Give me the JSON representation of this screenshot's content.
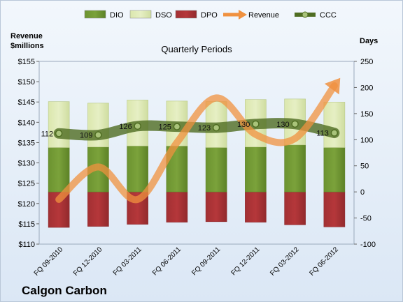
{
  "company": "Calgon Carbon",
  "chart_data": {
    "type": "bar",
    "title": "Quarterly Periods",
    "ylabel_left": [
      "Revenue",
      "$millions"
    ],
    "ylabel_right": "Days",
    "categories": [
      "FQ 09-2010",
      "FQ 12-2010",
      "FQ 03-2011",
      "FQ 06-2011",
      "FQ 09-2011",
      "FQ 12-2011",
      "FQ 03-2012",
      "FQ 06-2012"
    ],
    "ylim_left": [
      110,
      155
    ],
    "yticks_left": [
      "$110",
      "$115",
      "$120",
      "$125",
      "$130",
      "$135",
      "$140",
      "$145",
      "$150",
      "$155"
    ],
    "ylim_right": [
      -100,
      250
    ],
    "yticks_right": [
      "-100",
      "-50",
      "0",
      "50",
      "100",
      "150",
      "200",
      "250"
    ],
    "legend": [
      "DIO",
      "DSO",
      "DPO",
      "Revenue",
      "CCC"
    ],
    "legend_position": "top",
    "colors": {
      "DIO": "#7ba23b",
      "DSO": "#e6efc4",
      "DPO": "#b5373a",
      "Revenue": "#f0913f",
      "CCC": "#4f6d22"
    },
    "series": [
      {
        "name": "DIO",
        "axis": "right",
        "values": [
          85,
          86,
          88,
          88,
          85,
          86,
          90,
          85
        ]
      },
      {
        "name": "DSO",
        "axis": "right",
        "values": [
          88,
          84,
          88,
          86,
          88,
          91,
          88,
          87
        ]
      },
      {
        "name": "DPO",
        "axis": "right",
        "values": [
          -68,
          -66,
          -62,
          -58,
          -57,
          -58,
          -63,
          -67
        ]
      },
      {
        "name": "Revenue",
        "axis": "left",
        "values": [
          121,
          129,
          121,
          135,
          146,
          137,
          136,
          149
        ]
      },
      {
        "name": "CCC",
        "axis": "right",
        "values": [
          112,
          109,
          126,
          125,
          123,
          130,
          130,
          113
        ],
        "labels": [
          "112",
          "109",
          "126",
          "125",
          "123",
          "130",
          "130",
          "113"
        ]
      }
    ]
  }
}
